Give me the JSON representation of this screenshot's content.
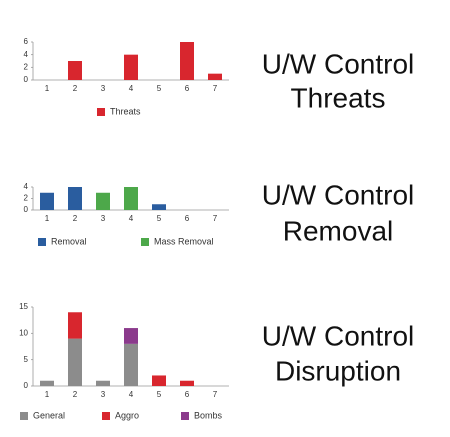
{
  "chart_data": [
    {
      "type": "bar",
      "title": [
        "U/W Control",
        "Threats"
      ],
      "categories": [
        "1",
        "2",
        "3",
        "4",
        "5",
        "6",
        "7"
      ],
      "series": [
        {
          "name": "Threats",
          "color": "#d8262e",
          "values": [
            0,
            3,
            0,
            4,
            0,
            6,
            1
          ]
        }
      ],
      "ylim": [
        0,
        6
      ],
      "yticks": [
        0,
        2,
        4,
        6
      ],
      "legend": "bottom"
    },
    {
      "type": "stacked-bar",
      "title": [
        "U/W Control",
        "Removal"
      ],
      "categories": [
        "1",
        "2",
        "3",
        "4",
        "5",
        "6",
        "7"
      ],
      "series": [
        {
          "name": "Removal",
          "color": "#2a5d9f",
          "values": [
            3,
            4,
            0,
            0,
            1,
            0,
            0
          ]
        },
        {
          "name": "Mass Removal",
          "color": "#4da84a",
          "values": [
            0,
            0,
            3,
            4,
            0,
            0,
            0
          ]
        }
      ],
      "ylim": [
        0,
        4
      ],
      "yticks": [
        0,
        2,
        4
      ],
      "legend": "bottom"
    },
    {
      "type": "stacked-bar",
      "title": [
        "U/W Control",
        "Disruption"
      ],
      "categories": [
        "1",
        "2",
        "3",
        "4",
        "5",
        "6",
        "7"
      ],
      "series": [
        {
          "name": "General",
          "color": "#8c8c8c",
          "values": [
            1,
            9,
            1,
            8,
            0,
            0,
            0
          ]
        },
        {
          "name": "Aggro",
          "color": "#d8262e",
          "values": [
            0,
            5,
            0,
            0,
            2,
            1,
            0
          ]
        },
        {
          "name": "Bombs",
          "color": "#8b3a8c",
          "values": [
            0,
            0,
            0,
            3,
            0,
            0,
            0
          ]
        }
      ],
      "ylim": [
        0,
        15
      ],
      "yticks": [
        0,
        5,
        10,
        15
      ],
      "legend": "bottom"
    }
  ]
}
